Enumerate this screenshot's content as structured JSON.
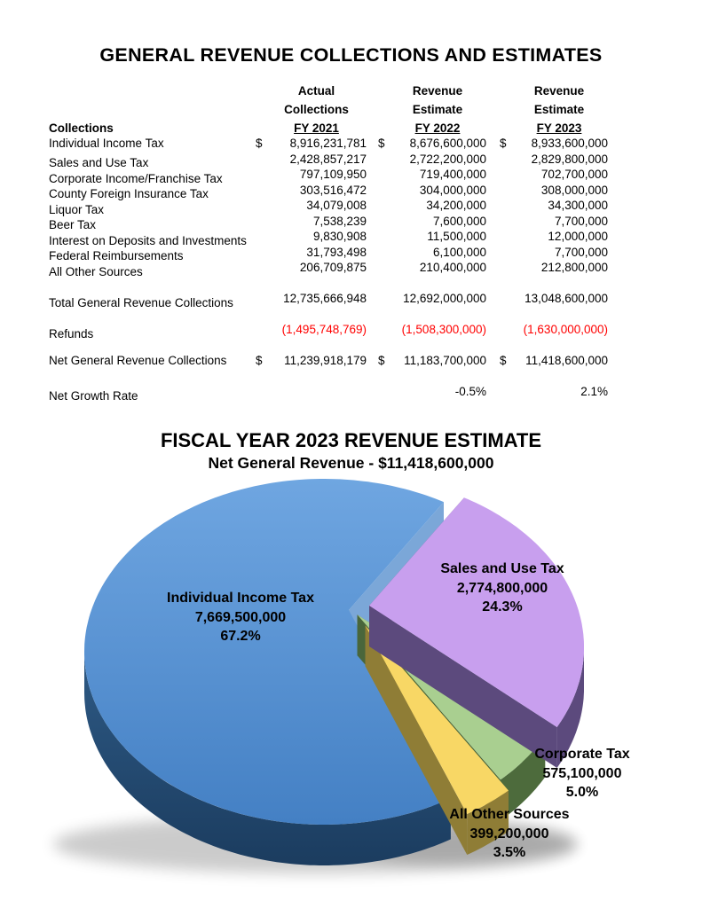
{
  "page": {
    "title": "GENERAL REVENUE COLLECTIONS AND ESTIMATES"
  },
  "table": {
    "row_header_label": "Collections",
    "columns": [
      {
        "lines": [
          "Actual",
          "Collections"
        ],
        "fy": "FY 2021"
      },
      {
        "lines": [
          "Revenue",
          "Estimate"
        ],
        "fy": "FY 2022"
      },
      {
        "lines": [
          "Revenue",
          "Estimate"
        ],
        "fy": "FY 2023"
      }
    ],
    "rows": [
      {
        "label": "Individual Income Tax",
        "dollars": true,
        "values": [
          "8,916,231,781",
          "8,676,600,000",
          "8,933,600,000"
        ]
      },
      {
        "label": "Sales and Use Tax",
        "dollars": false,
        "values": [
          "2,428,857,217",
          "2,722,200,000",
          "2,829,800,000"
        ]
      },
      {
        "label": "Corporate Income/Franchise Tax",
        "dollars": false,
        "values": [
          "797,109,950",
          "719,400,000",
          "702,700,000"
        ]
      },
      {
        "label": "County Foreign Insurance Tax",
        "dollars": false,
        "values": [
          "303,516,472",
          "304,000,000",
          "308,000,000"
        ]
      },
      {
        "label": "Liquor Tax",
        "dollars": false,
        "values": [
          "34,079,008",
          "34,200,000",
          "34,300,000"
        ]
      },
      {
        "label": "Beer Tax",
        "dollars": false,
        "values": [
          "7,538,239",
          "7,600,000",
          "7,700,000"
        ]
      },
      {
        "label": "Interest on Deposits and Investments",
        "dollars": false,
        "values": [
          "9,830,908",
          "11,500,000",
          "12,000,000"
        ]
      },
      {
        "label": "Federal Reimbursements",
        "dollars": false,
        "values": [
          "31,793,498",
          "6,100,000",
          "7,700,000"
        ]
      },
      {
        "label": "All Other Sources",
        "dollars": false,
        "values": [
          "206,709,875",
          "210,400,000",
          "212,800,000"
        ]
      }
    ],
    "total_row": {
      "label": "Total General Revenue Collections",
      "dollars": false,
      "values": [
        "12,735,666,948",
        "12,692,000,000",
        "13,048,600,000"
      ]
    },
    "refunds_row": {
      "label": "Refunds",
      "dollars": false,
      "values": [
        "(1,495,748,769)",
        "(1,508,300,000)",
        "(1,630,000,000)"
      ],
      "color": "#FF0000"
    },
    "net_row": {
      "label": "Net General Revenue Collections",
      "dollars": true,
      "values": [
        "11,239,918,179",
        "11,183,700,000",
        "11,418,600,000"
      ]
    },
    "growth_row": {
      "label": "Net Growth Rate",
      "dollars": false,
      "values": [
        "",
        "-0.5%",
        "2.1%"
      ]
    },
    "dollar_sign": "$"
  },
  "chart": {
    "title": "FISCAL YEAR 2023 REVENUE ESTIMATE",
    "subtitle": "Net General Revenue - $11,418,600,000"
  },
  "chart_data": {
    "type": "pie",
    "is_3d": true,
    "title": "FISCAL YEAR 2023 REVENUE ESTIMATE",
    "subtitle": "Net General Revenue - $11,418,600,000",
    "total_display": "$11,418,600,000",
    "start_angle_deg": 30,
    "slices": [
      {
        "label": "Individual Income Tax",
        "value": 7669500000,
        "display": "7,669,500,000",
        "pct": 67.2,
        "pct_display": "67.2%",
        "color": "#5B9BD5",
        "side": "#1F4468"
      },
      {
        "label": "Sales and Use Tax",
        "value": 2774800000,
        "display": "2,774,800,000",
        "pct": 24.3,
        "pct_display": "24.3%",
        "color": "#C89FEE",
        "side": "#5C4A7D"
      },
      {
        "label": "Corporate Tax",
        "value": 575100000,
        "display": "575,100,000",
        "pct": 5.0,
        "pct_display": "5.0%",
        "color": "#A9CF90",
        "side": "#4D6B3C"
      },
      {
        "label": "All Other Sources",
        "value": 399200000,
        "display": "399,200,000",
        "pct": 3.5,
        "pct_display": "3.5%",
        "color": "#F8D765",
        "side": "#8F7D36"
      }
    ]
  }
}
